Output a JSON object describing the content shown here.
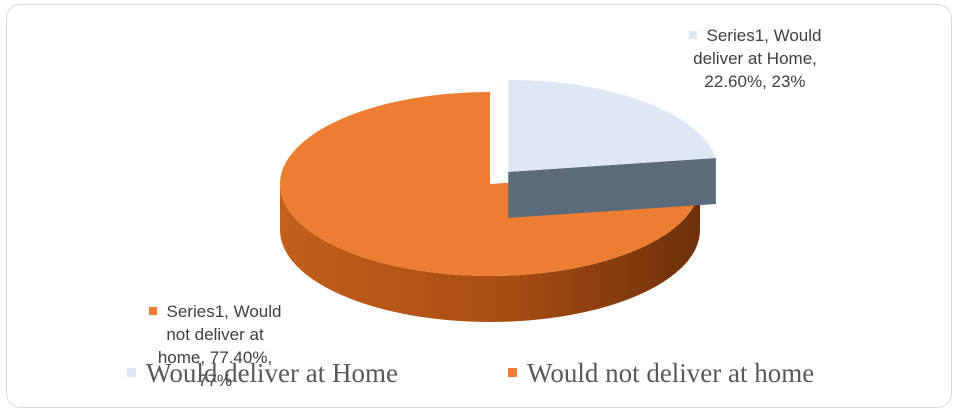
{
  "chart_data": {
    "type": "pie",
    "style": "3d",
    "series_name": "Series1",
    "slices": [
      {
        "name": "Would deliver at Home",
        "percent": 22.6,
        "rounded_label": "23%",
        "color": "#dde8f4",
        "side_color": "#5b6b7c"
      },
      {
        "name": "Would not deliver at home",
        "percent": 77.4,
        "rounded_label": "77%",
        "color": "#ed7d31",
        "side_color": "#a84c12"
      }
    ],
    "data_labels": [
      {
        "lines": [
          "Series1, Would",
          "deliver at Home,",
          "22.60%, 23%"
        ],
        "marker_color": "#dde8f4"
      },
      {
        "lines": [
          "Series1, Would",
          "not deliver at",
          "home, 77.40%,",
          "77%"
        ],
        "marker_color": "#ed7d31"
      }
    ],
    "legend": {
      "position": "bottom",
      "items": [
        {
          "label": "Would deliver at Home",
          "color": "#dde8f4"
        },
        {
          "label": "Would not deliver at home",
          "color": "#ed7d31"
        }
      ]
    }
  }
}
